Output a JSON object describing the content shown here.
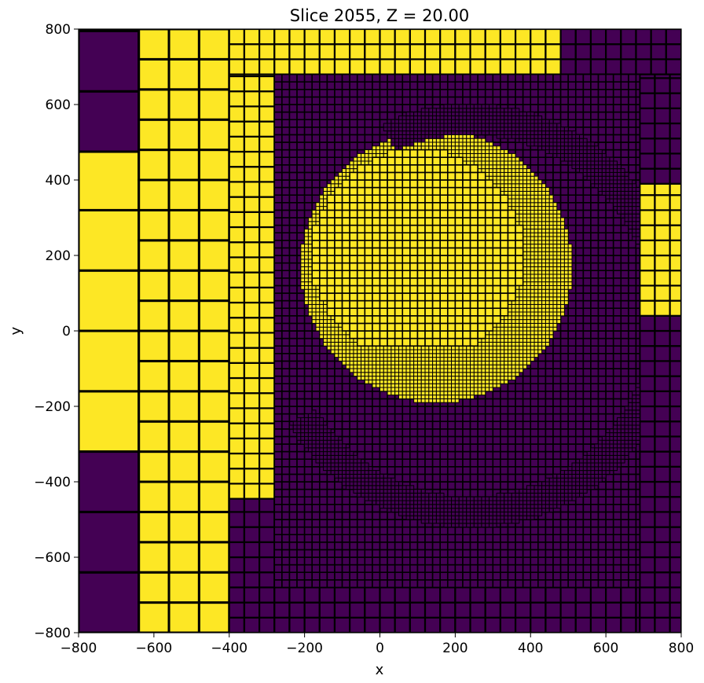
{
  "chart_data": {
    "type": "heatmap",
    "title": "Slice 2055, Z = 20.00",
    "xlabel": "x",
    "ylabel": "y",
    "xlim": [
      -800,
      800
    ],
    "ylim": [
      -800,
      800
    ],
    "x_ticks": [
      {
        "value": -800,
        "label": "−800"
      },
      {
        "value": -600,
        "label": "−600"
      },
      {
        "value": -400,
        "label": "−400"
      },
      {
        "value": -200,
        "label": "−200"
      },
      {
        "value": 0,
        "label": "0"
      },
      {
        "value": 200,
        "label": "200"
      },
      {
        "value": 400,
        "label": "400"
      },
      {
        "value": 600,
        "label": "600"
      },
      {
        "value": 800,
        "label": "800"
      }
    ],
    "y_ticks": [
      {
        "value": -800,
        "label": "−800"
      },
      {
        "value": -600,
        "label": "−600"
      },
      {
        "value": -400,
        "label": "−400"
      },
      {
        "value": -200,
        "label": "−200"
      },
      {
        "value": 0,
        "label": "0"
      },
      {
        "value": 200,
        "label": "200"
      },
      {
        "value": 400,
        "label": "400"
      },
      {
        "value": 600,
        "label": "600"
      },
      {
        "value": 800,
        "label": "800"
      }
    ],
    "grid": false,
    "colormap": {
      "low": "#440154",
      "high": "#fde725",
      "cell_edge": "#000000"
    },
    "regions": [
      {
        "value": 1,
        "x": [
          -800,
          -640
        ],
        "y": [
          -320,
          475
        ],
        "cell_size": 160
      },
      {
        "value": 0,
        "x": [
          -800,
          -640
        ],
        "y": [
          475,
          800
        ],
        "cell_size": 160
      },
      {
        "value": 0,
        "x": [
          -800,
          -640
        ],
        "y": [
          -800,
          -320
        ],
        "cell_size": 160
      },
      {
        "value": 1,
        "x": [
          -640,
          -400
        ],
        "y": [
          -800,
          800
        ],
        "cell_size": 80
      },
      {
        "value": 1,
        "x": [
          -400,
          480
        ],
        "y": [
          680,
          800
        ],
        "cell_size": 40
      },
      {
        "value": 0,
        "x": [
          480,
          800
        ],
        "y": [
          680,
          800
        ],
        "cell_size": 40
      },
      {
        "value": 1,
        "x": [
          -400,
          -280
        ],
        "y": [
          -445,
          680
        ],
        "cell_size": 40
      },
      {
        "value": 0,
        "x": [
          -400,
          -280
        ],
        "y": [
          -800,
          -445
        ],
        "cell_size": 40
      },
      {
        "value": 0,
        "x": [
          -280,
          690
        ],
        "y": [
          -800,
          -680
        ],
        "cell_size": 40
      },
      {
        "value": 0,
        "x": [
          690,
          800
        ],
        "y": [
          -800,
          40
        ],
        "cell_size": 40
      },
      {
        "value": 1,
        "x": [
          690,
          800
        ],
        "y": [
          40,
          390
        ],
        "cell_size": 40
      },
      {
        "value": 0,
        "x": [
          690,
          800
        ],
        "y": [
          390,
          680
        ],
        "cell_size": 40
      },
      {
        "value": 0,
        "x": [
          -280,
          690
        ],
        "y": [
          -680,
          680
        ],
        "cell_size": 20
      },
      {
        "value": 1,
        "x": [
          -280,
          690
        ],
        "y": [
          -420,
          680
        ],
        "cell_size": 10,
        "shape": "disk",
        "center": [
          150,
          170
        ],
        "radius": 360
      },
      {
        "value": 0,
        "x": [
          -280,
          690
        ],
        "y": [
          -680,
          680
        ],
        "cell_size": 10,
        "shape": "crescent",
        "center": [
          240,
          40
        ],
        "radius": [
          480,
          560
        ]
      },
      {
        "value": 1,
        "x": [
          -180,
          420
        ],
        "y": [
          -40,
          510
        ],
        "cell_size": 20,
        "shape": "disk",
        "center": [
          100,
          200
        ],
        "radius": 280
      }
    ]
  }
}
